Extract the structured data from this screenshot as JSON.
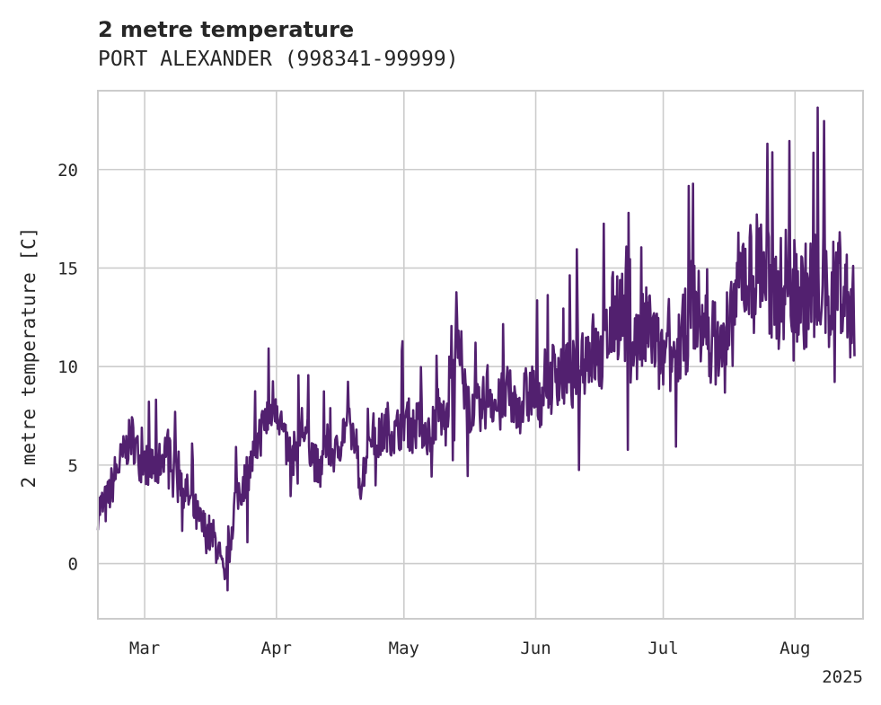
{
  "chart_data": {
    "type": "line",
    "title": "2 metre temperature",
    "subtitle": "PORT ALEXANDER (998341-99999)",
    "xlabel": "",
    "ylabel": "2 metre temperature [C]",
    "x_tick_labels": [
      "Mar",
      "Apr",
      "May",
      "Jun",
      "Jul",
      "Aug"
    ],
    "x_offset_label": "2025",
    "y_ticks": [
      0,
      5,
      10,
      15,
      20
    ],
    "ylim": [
      -2.8,
      24.0
    ],
    "xlim": [
      "2025-02-18",
      "2025-08-17"
    ],
    "grid": true,
    "legend": "none",
    "line_color": "#52206f",
    "series": [
      {
        "x": [
          "2025-02-18",
          "2025-02-20",
          "2025-02-22",
          "2025-02-24",
          "2025-02-26",
          "2025-02-28",
          "2025-03-02",
          "2025-03-04",
          "2025-03-06",
          "2025-03-08",
          "2025-03-10",
          "2025-03-12",
          "2025-03-14",
          "2025-03-16",
          "2025-03-18",
          "2025-03-20",
          "2025-03-22",
          "2025-03-24",
          "2025-03-26",
          "2025-03-28",
          "2025-03-30",
          "2025-04-01",
          "2025-04-03",
          "2025-04-05",
          "2025-04-07",
          "2025-04-09",
          "2025-04-11",
          "2025-04-13",
          "2025-04-15",
          "2025-04-17",
          "2025-04-19",
          "2025-04-21",
          "2025-04-23",
          "2025-04-25",
          "2025-04-27",
          "2025-04-29",
          "2025-05-01",
          "2025-05-03",
          "2025-05-05",
          "2025-05-07",
          "2025-05-09",
          "2025-05-11",
          "2025-05-13",
          "2025-05-15",
          "2025-05-17",
          "2025-05-19",
          "2025-05-21",
          "2025-05-23",
          "2025-05-25",
          "2025-05-27",
          "2025-05-29",
          "2025-05-31",
          "2025-06-02",
          "2025-06-04",
          "2025-06-06",
          "2025-06-08",
          "2025-06-10",
          "2025-06-12",
          "2025-06-14",
          "2025-06-16",
          "2025-06-18",
          "2025-06-20",
          "2025-06-22",
          "2025-06-24",
          "2025-06-26",
          "2025-06-28",
          "2025-06-30",
          "2025-07-02",
          "2025-07-04",
          "2025-07-06",
          "2025-07-08",
          "2025-07-10",
          "2025-07-12",
          "2025-07-14",
          "2025-07-16",
          "2025-07-18",
          "2025-07-20",
          "2025-07-22",
          "2025-07-24",
          "2025-07-26",
          "2025-07-28",
          "2025-07-30",
          "2025-08-01",
          "2025-08-03",
          "2025-08-05",
          "2025-08-07",
          "2025-08-09",
          "2025-08-11",
          "2025-08-13",
          "2025-08-15"
        ],
        "values": [
          2.8,
          3.0,
          4.5,
          5.5,
          6.5,
          5.2,
          5.0,
          4.8,
          6.0,
          5.5,
          4.0,
          3.0,
          2.0,
          1.5,
          1.0,
          -1.5,
          3.0,
          4.0,
          5.0,
          6.5,
          7.5,
          8.5,
          6.0,
          5.5,
          7.0,
          6.0,
          4.5,
          6.0,
          5.5,
          7.0,
          6.5,
          4.0,
          6.8,
          6.2,
          7.0,
          6.5,
          7.5,
          6.8,
          7.2,
          6.5,
          7.8,
          7.0,
          12.5,
          8.5,
          8.0,
          7.5,
          9.0,
          7.8,
          8.5,
          8.0,
          8.2,
          8.8,
          8.5,
          9.0,
          10.0,
          9.5,
          9.5,
          10.5,
          11.0,
          10.2,
          11.5,
          13.0,
          12.5,
          11.0,
          11.5,
          12.0,
          10.5,
          10.0,
          10.8,
          11.5,
          13.5,
          12.0,
          11.5,
          11.0,
          10.5,
          13.5,
          15.0,
          14.5,
          15.5,
          14.0,
          13.5,
          14.5,
          14.0,
          13.5,
          14.0,
          14.5,
          13.0,
          15.0,
          13.5,
          12.5
        ]
      }
    ]
  }
}
